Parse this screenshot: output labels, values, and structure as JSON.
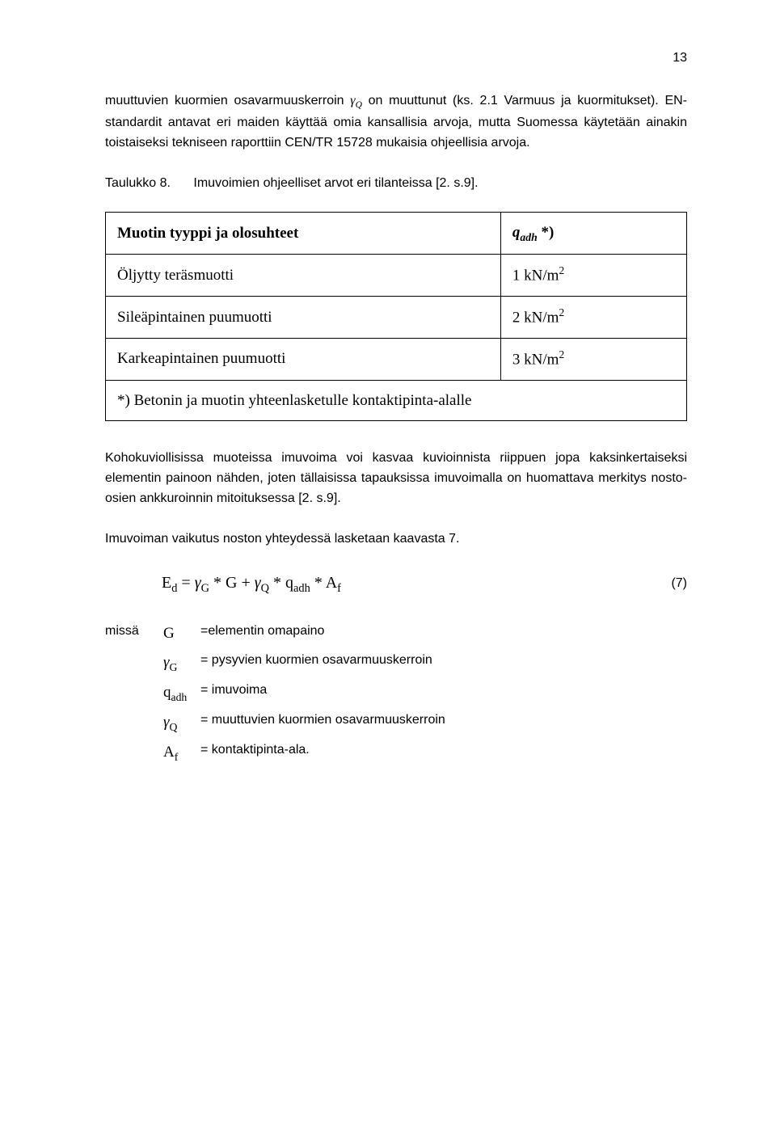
{
  "page_number": "13",
  "para1_a": "muuttuvien kuormien osavarmuuskerroin ",
  "para1_sym": "γ",
  "para1_sub": "Q",
  "para1_b": " on muuttunut (ks. 2.1 Varmuus ja kuormitukset). EN-standardit antavat eri maiden käyttää omia kansallisia arvoja, mutta Suomessa käytetään ainakin toistaiseksi tekniseen raporttiin CEN/TR 15728 mukaisia ohjeellisia arvoja.",
  "table_caption_label": "Taulukko 8.",
  "table_caption_text": "Imuvoimien ohjeelliset arvot eri tilanteissa [2. s.9].",
  "table": {
    "hdr_left": "Muotin tyyppi ja olosuhteet",
    "hdr_right_sym": "q",
    "hdr_right_sub": "adh",
    "hdr_right_star": " *)",
    "rows": [
      {
        "name": "Öljytty teräsmuotti",
        "val": "1 kN/m",
        "sup": "2"
      },
      {
        "name": "Sileäpintainen puumuotti",
        "val": "2 kN/m",
        "sup": "2"
      },
      {
        "name": "Karkeapintainen puumuotti",
        "val": "3 kN/m",
        "sup": "2"
      }
    ],
    "footnote": "*) Betonin ja muotin yhteenlasketulle kontaktipinta-alalle"
  },
  "para2": "Kohokuviollisissa muoteissa imuvoima voi kasvaa kuvioinnista riippuen jopa kaksinkertaiseksi elementin painoon nähden, joten tällaisissa tapauksissa imuvoimalla on huomattava merkitys nosto-osien ankkuroinnin mitoituksessa [2. s.9].",
  "para3": "Imuvoiman vaikutus noston yhteydessä lasketaan kaavasta 7.",
  "equation": {
    "lhs_sym": "E",
    "lhs_sub": "d",
    "eq": " = ",
    "g1_sym": "γ",
    "g1_sub": "G",
    "star1": " * ",
    "G": "G",
    "plus": " + ",
    "g2_sym": "γ",
    "g2_sub": "Q",
    "star2": " * ",
    "q_sym": "q",
    "q_sub": "adh",
    "star3": " * ",
    "A_sym": "A",
    "A_sub": "f",
    "num": "(7)"
  },
  "where_label": "missä",
  "defs": {
    "g_sym": "G",
    "g_def": " =elementin omapaino",
    "gG_sym": "γ",
    "gG_sub": "G",
    "gG_def": " = pysyvien kuormien osavarmuuskerroin",
    "qadh_sym": "q",
    "qadh_sub": "adh",
    "qadh_def": "= imuvoima",
    "gQ_sym": "γ",
    "gQ_sub": "Q",
    "gQ_def": " = muuttuvien kuormien osavarmuuskerroin",
    "Af_sym": "A",
    "Af_sub": "f",
    "Af_def": " = kontaktipinta-ala."
  }
}
